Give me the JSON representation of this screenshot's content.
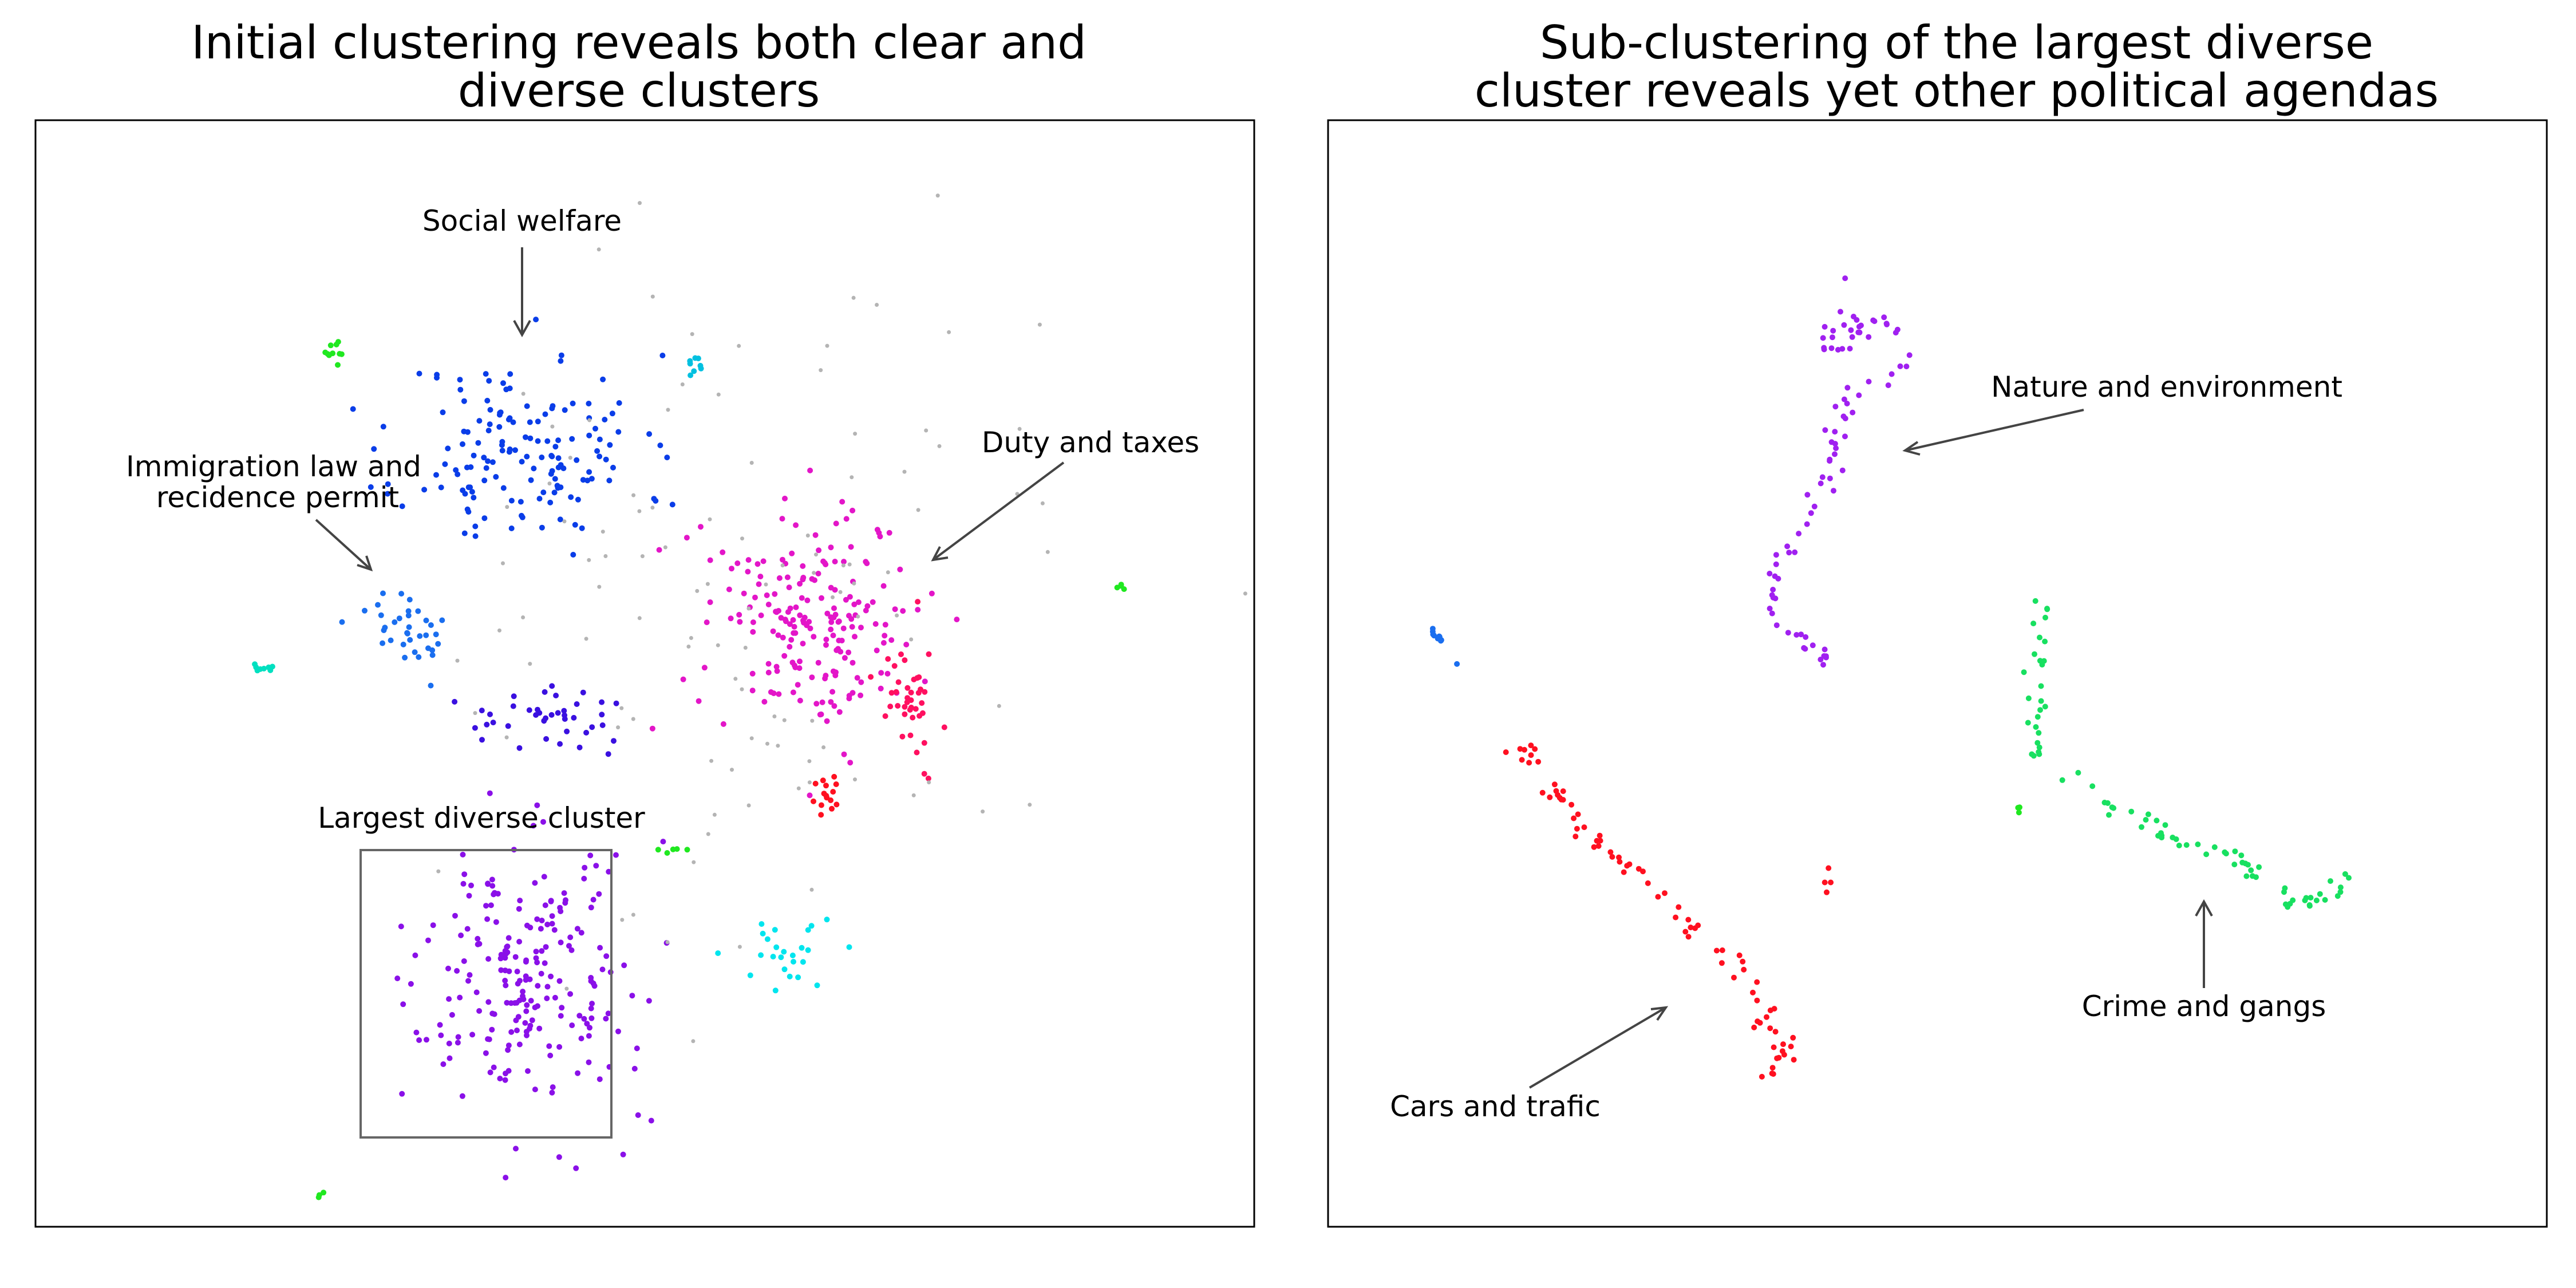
{
  "chart_data": [
    {
      "type": "scatter",
      "title": "Initial clustering reveals both clear and\ndiverse clusters",
      "xlabel": "",
      "ylabel": "",
      "axes_visible": false,
      "grid": false,
      "xlim": [
        0,
        100
      ],
      "ylim": [
        0,
        100
      ],
      "annotations": [
        {
          "text": "Social welfare",
          "points_to": "blue cluster (upper)"
        },
        {
          "text": "Immigration law and\nrecidence permit",
          "points_to": "light-blue cluster"
        },
        {
          "text": "Duty and taxes",
          "points_to": "magenta cluster"
        },
        {
          "text": "Largest diverse cluster",
          "points_to": "purple cluster (boxed)"
        }
      ],
      "series": [
        {
          "color": "#0a3de8",
          "type": "blob",
          "cx": 40,
          "cy": 70,
          "rx": 9,
          "ry": 8,
          "n": 150,
          "seed": 11
        },
        {
          "color": "#1a6eef",
          "type": "blob",
          "cx": 31,
          "cy": 54,
          "rx": 4,
          "ry": 3,
          "n": 35,
          "seed": 12
        },
        {
          "color": "#3a10e0",
          "type": "blob",
          "cx": 42,
          "cy": 46,
          "rx": 6,
          "ry": 2.5,
          "n": 40,
          "seed": 13
        },
        {
          "color": "#e316c8",
          "type": "blob",
          "cx": 64,
          "cy": 55,
          "rx": 8,
          "ry": 9,
          "n": 200,
          "seed": 14
        },
        {
          "color": "#ff1060",
          "type": "blob",
          "cx": 72,
          "cy": 48,
          "rx": 2,
          "ry": 6,
          "n": 40,
          "seed": 15
        },
        {
          "color": "#ff1020",
          "type": "blob",
          "cx": 65,
          "cy": 39,
          "rx": 1,
          "ry": 2,
          "n": 15,
          "seed": 16
        },
        {
          "color": "#8a10e8",
          "type": "blob",
          "cx": 40,
          "cy": 22,
          "rx": 8,
          "ry": 11,
          "n": 220,
          "seed": 17
        },
        {
          "color": "#00e5ee",
          "type": "blob",
          "cx": 61,
          "cy": 24,
          "rx": 4,
          "ry": 4,
          "n": 25,
          "seed": 18
        },
        {
          "color": "#00c0e0",
          "type": "blob",
          "cx": 54,
          "cy": 78,
          "rx": 0.6,
          "ry": 0.8,
          "n": 8,
          "seed": 19
        },
        {
          "color": "#00e0c0",
          "type": "blob",
          "cx": 18.5,
          "cy": 50.5,
          "rx": 1,
          "ry": 0.4,
          "n": 8,
          "seed": 20
        },
        {
          "color": "#20e820",
          "type": "blob",
          "cx": 24.5,
          "cy": 79,
          "rx": 0.8,
          "ry": 1.2,
          "n": 10,
          "seed": 21
        },
        {
          "color": "#20e820",
          "type": "blob",
          "cx": 52,
          "cy": 34,
          "rx": 1.2,
          "ry": 0.8,
          "n": 5,
          "seed": 22
        },
        {
          "color": "#20e820",
          "type": "blob",
          "cx": 89,
          "cy": 58,
          "rx": 0.4,
          "ry": 0.4,
          "n": 4,
          "seed": 23
        },
        {
          "color": "#20e820",
          "type": "blob",
          "cx": 23.5,
          "cy": 3,
          "rx": 0.3,
          "ry": 0.4,
          "n": 3,
          "seed": 24
        },
        {
          "color": "#b4b4b4",
          "type": "blob",
          "cx": 60,
          "cy": 55,
          "rx": 22,
          "ry": 25,
          "n": 110,
          "seed": 25
        }
      ]
    },
    {
      "type": "scatter",
      "title": "Sub-clustering of the largest diverse\ncluster reveals yet other political agendas",
      "xlabel": "",
      "ylabel": "",
      "axes_visible": false,
      "grid": false,
      "xlim": [
        0,
        100
      ],
      "ylim": [
        0,
        100
      ],
      "annotations": [
        {
          "text": "Nature and environment",
          "points_to": "purple chain"
        },
        {
          "text": "Cars and trafic",
          "points_to": "red chain"
        },
        {
          "text": "Crime and gangs",
          "points_to": "green chain"
        }
      ],
      "series": [
        {
          "color": "#a020f0",
          "type": "path",
          "path": [
            [
              42.5,
              86
            ],
            [
              43,
              83.5
            ],
            [
              41,
              80
            ],
            [
              43,
              79
            ],
            [
              44,
              82
            ],
            [
              46.5,
              81.5
            ],
            [
              47.5,
              79
            ],
            [
              43,
              75
            ],
            [
              42,
              72
            ],
            [
              41,
              68
            ],
            [
              40,
              65
            ],
            [
              39,
              63
            ],
            [
              37,
              60
            ],
            [
              36,
              58
            ],
            [
              37,
              55
            ],
            [
              38.5,
              53
            ],
            [
              40,
              52
            ],
            [
              41,
              51
            ]
          ],
          "n": 90,
          "spread": 1.1,
          "seed": 31
        },
        {
          "color": "#ff1020",
          "type": "path",
          "path": [
            [
              15,
              44
            ],
            [
              17,
              42
            ],
            [
              19,
              39
            ],
            [
              22,
              35
            ],
            [
              25,
              32
            ],
            [
              27,
              30
            ],
            [
              29,
              28
            ],
            [
              32,
              25
            ],
            [
              35,
              22
            ],
            [
              36,
              20
            ],
            [
              35.5,
              18
            ],
            [
              38,
              16
            ],
            [
              36,
              14
            ]
          ],
          "n": 80,
          "spread": 1.0,
          "seed": 32
        },
        {
          "color": "#18e060",
          "type": "path",
          "path": [
            [
              59,
              57
            ],
            [
              58.5,
              54
            ],
            [
              58,
              50
            ],
            [
              58,
              46
            ],
            [
              58,
              43
            ],
            [
              60,
              41
            ],
            [
              63,
              39
            ],
            [
              66,
              37
            ],
            [
              68,
              36
            ],
            [
              71,
              34
            ],
            [
              75,
              33
            ],
            [
              78,
              30
            ],
            [
              81,
              29
            ],
            [
              84,
              32
            ]
          ],
          "n": 85,
          "spread": 0.9,
          "seed": 33
        },
        {
          "color": "#1a6eef",
          "type": "path",
          "path": [
            [
              8.5,
              54
            ],
            [
              9.5,
              52.5
            ],
            [
              10.5,
              51
            ]
          ],
          "n": 10,
          "spread": 0.3,
          "seed": 34
        },
        {
          "color": "#20e820",
          "type": "path",
          "path": [
            [
              56.5,
              38
            ],
            [
              56.8,
              37.5
            ]
          ],
          "n": 3,
          "spread": 0.3,
          "seed": 35
        },
        {
          "color": "#ff1020",
          "type": "path",
          "path": [
            [
              41,
              33
            ],
            [
              41,
              28
            ]
          ],
          "n": 4,
          "spread": 0.5,
          "seed": 36
        }
      ]
    }
  ]
}
